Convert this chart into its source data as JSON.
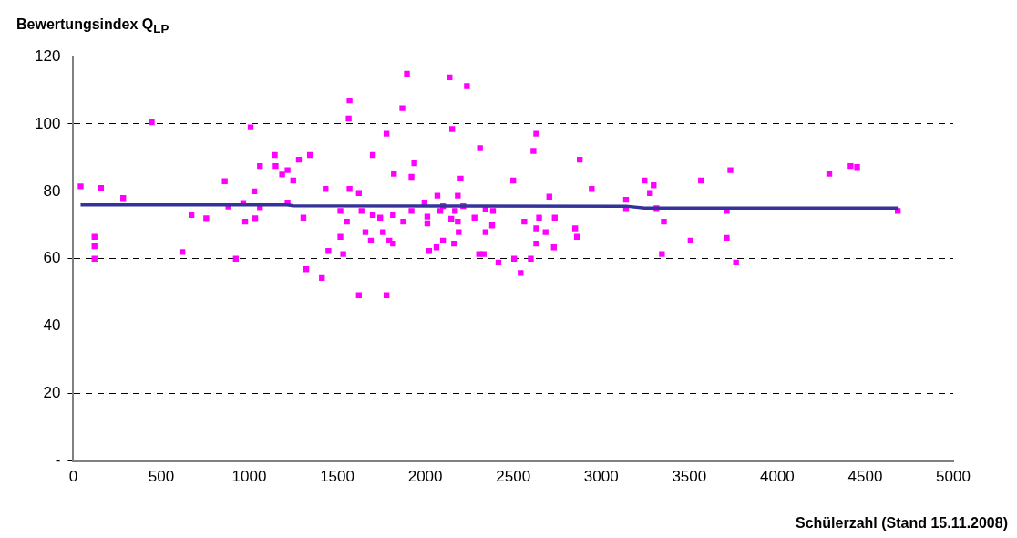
{
  "chart_data": {
    "type": "scatter",
    "xlabel": "Schülerzahl (Stand 15.11.2008)",
    "ylabel": "Bewertungsindex Q$_{LP}$",
    "xlim": [
      0,
      5000
    ],
    "xticks": [
      0,
      500,
      1000,
      1500,
      2000,
      2500,
      3000,
      3500,
      4000,
      4500,
      5000
    ],
    "ylim": [
      0,
      120
    ],
    "yticks": [
      {
        "value": 0,
        "label": "-"
      },
      20,
      40,
      60,
      80,
      100,
      120
    ],
    "grid": "y",
    "legend": false,
    "series": [
      {
        "marker": "square",
        "color": "#ff00ff",
        "x": [
          42,
          121,
          121,
          121,
          158,
          284,
          446,
          620,
          672,
          756,
          861,
          882,
          924,
          966,
          977,
          1008,
          1029,
          1034,
          1061,
          1061,
          1145,
          1150,
          1187,
          1218,
          1282,
          1250,
          1218,
          1308,
          1345,
          1324,
          1413,
          1434,
          1450,
          1518,
          1518,
          1534,
          1555,
          1565,
          1570,
          1570,
          1623,
          1623,
          1638,
          1660,
          1691,
          1702,
          1702,
          1896,
          2138,
          2237,
          1870,
          1780,
          2153,
          1822,
          1938,
          1922,
          2311,
          2631,
          2615,
          2878,
          2201,
          2500,
          2946,
          3246,
          3298,
          3277,
          3141,
          3141,
          3314,
          3356,
          3345,
          2705,
          1780,
          1744,
          1817,
          1875,
          1922,
          1996,
          2069,
          2101,
          2085,
          2012,
          2012,
          2148,
          2169,
          2185,
          2216,
          2185,
          2190,
          2164,
          2101,
          2064,
          2022,
          1760,
          1796,
          1817,
          2280,
          2343,
          2385,
          2343,
          2380,
          2306,
          2332,
          2416,
          2505,
          2542,
          2600,
          2563,
          2647,
          2631,
          2684,
          2631,
          2731,
          2736,
          2852,
          2862,
          3508,
          3567,
          3713,
          3734,
          3713,
          3766,
          4296,
          4417,
          4454,
          4685
        ],
        "values": [
          81.5,
          60,
          63.7,
          66.5,
          81,
          78,
          100.5,
          62,
          73,
          72,
          83,
          75.5,
          60,
          76.5,
          71,
          99,
          80,
          72,
          87.5,
          75.3,
          90.8,
          87.5,
          85,
          86.3,
          89.4,
          83.2,
          76.7,
          72.2,
          90.8,
          56.9,
          54.3,
          80.7,
          62.3,
          74.2,
          66.5,
          61.4,
          71,
          101.6,
          107,
          80.7,
          79.5,
          49.2,
          74.2,
          67.9,
          65.4,
          73,
          90.8,
          114.9,
          113.8,
          111.2,
          104.7,
          97.1,
          98.5,
          85.2,
          88.3,
          84.3,
          92.8,
          97.1,
          92,
          89.4,
          83.8,
          83.2,
          80.7,
          83.2,
          81.8,
          79.5,
          77.5,
          75,
          75,
          71,
          61.4,
          78.4,
          49.2,
          72.2,
          73,
          71,
          74.2,
          76.7,
          78.7,
          75.6,
          74.2,
          72.5,
          70.5,
          71.9,
          74.2,
          78.7,
          75.6,
          71,
          67.9,
          64.5,
          65.4,
          63.4,
          62.3,
          67.9,
          65.4,
          64.5,
          72.2,
          74.7,
          74.2,
          67.9,
          69.9,
          61.4,
          61.4,
          58.9,
          60,
          55.8,
          60,
          71,
          72.2,
          69,
          67.9,
          64.5,
          63.4,
          72.2,
          69,
          66.5,
          65.4,
          83.2,
          74.2,
          86.3,
          66.2,
          58.9,
          85.2,
          87.5,
          87.2,
          74.2
        ]
      },
      {
        "type": "line",
        "marker": "none",
        "line_style": "solid",
        "color": "#333399",
        "x": [
          42,
          1218,
          1250,
          3141,
          3246,
          4685
        ],
        "values": [
          76,
          76,
          75.7,
          75.6,
          75,
          75
        ]
      }
    ]
  }
}
